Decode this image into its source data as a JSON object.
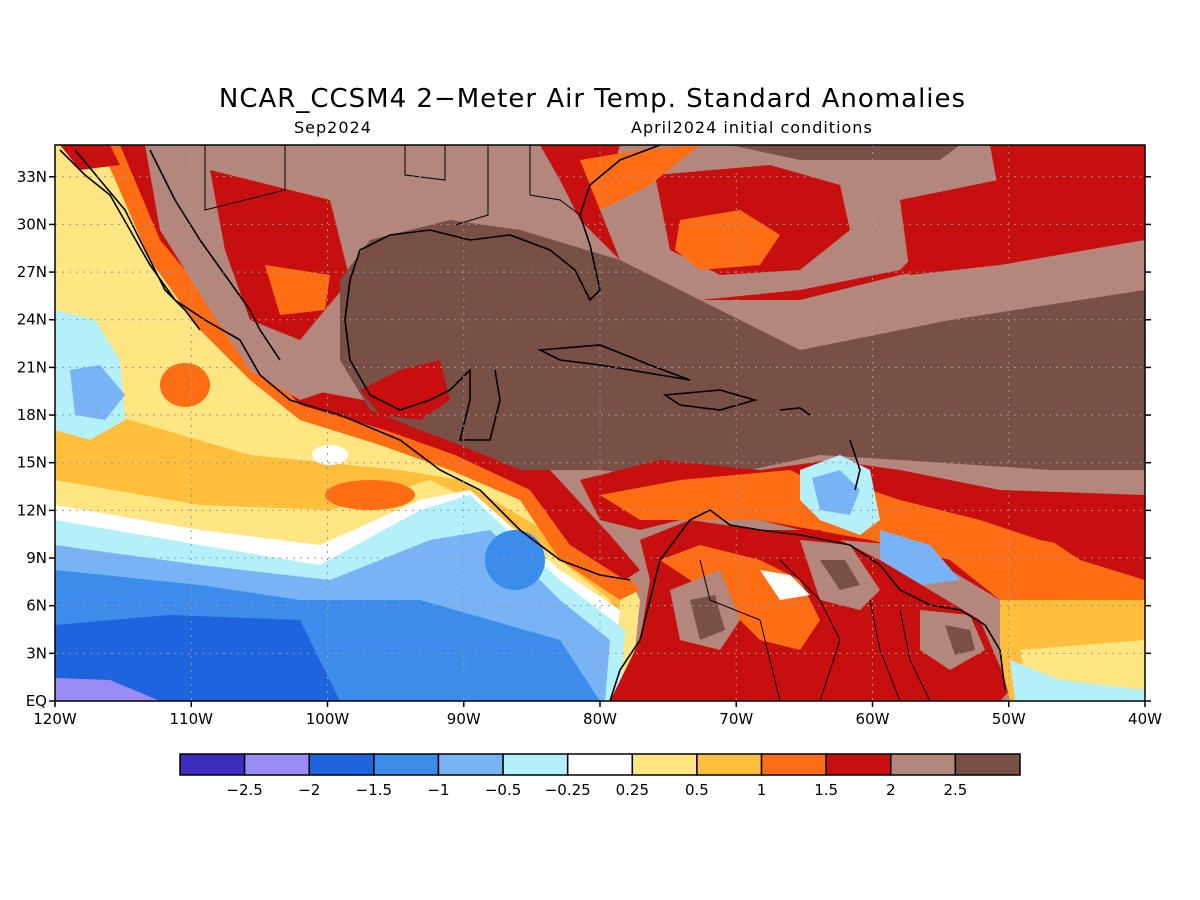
{
  "title": "NCAR_CCSM4 2−Meter Air Temp. Standard Anomalies",
  "subtitle_left": "Sep2024",
  "subtitle_right": "April2024 initial conditions",
  "map": {
    "lon_range": [
      -120,
      -40
    ],
    "lat_range": [
      0,
      35
    ],
    "lon_ticks": [
      "120W",
      "110W",
      "100W",
      "90W",
      "80W",
      "70W",
      "60W",
      "50W",
      "40W"
    ],
    "lat_ticks": [
      "EQ",
      "3N",
      "6N",
      "9N",
      "12N",
      "15N",
      "18N",
      "21N",
      "24N",
      "27N",
      "30N",
      "33N"
    ],
    "grid": "dotted"
  },
  "colorbar": {
    "colors": [
      "#3c2cbf",
      "#9a8cf5",
      "#1e64dc",
      "#3c8ceb",
      "#78b4f5",
      "#b4f0fa",
      "#ffffff",
      "#ffe682",
      "#ffbe3c",
      "#ff6e14",
      "#c80f0f",
      "#b4877d",
      "#785046"
    ],
    "labels": [
      "−2.5",
      "−2",
      "−1.5",
      "−1",
      "−0.5",
      "−0.25",
      "0.25",
      "0.5",
      "1",
      "1.5",
      "2",
      "2.5"
    ]
  }
}
